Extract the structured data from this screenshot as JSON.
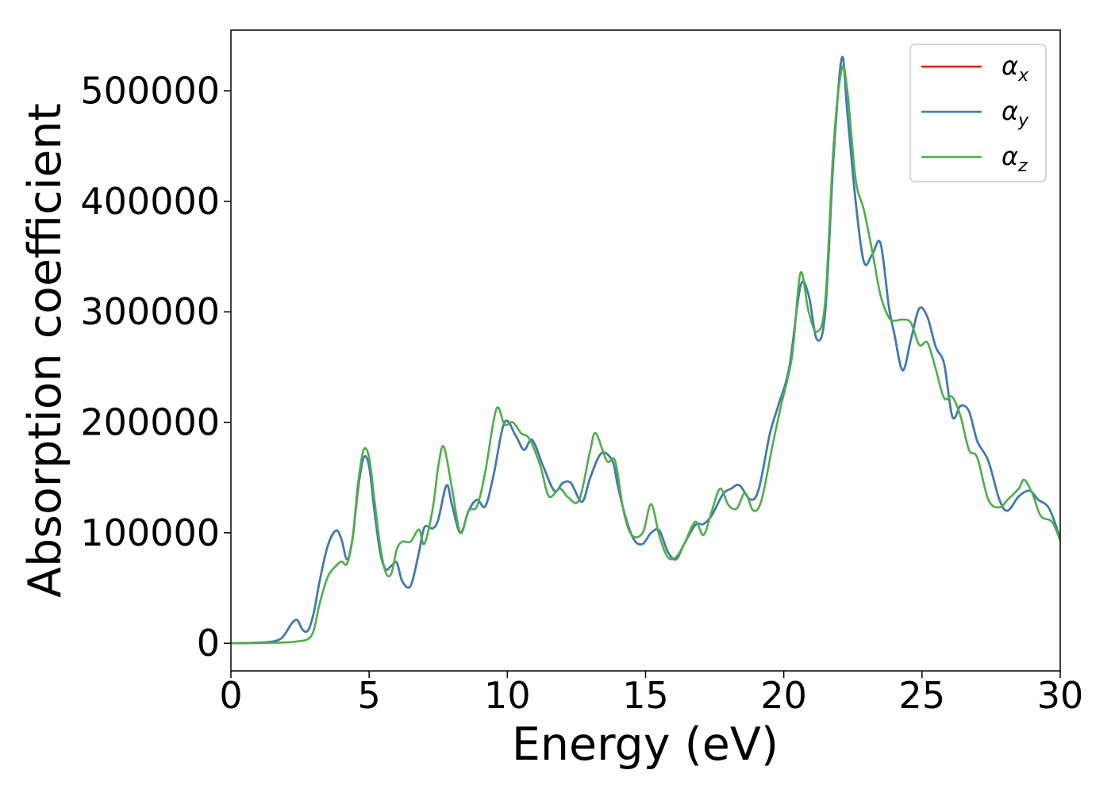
{
  "chart_data": {
    "type": "line",
    "title": "",
    "xlabel": "Energy (eV)",
    "ylabel": "Absorption coefficient",
    "xlim": [
      0,
      30
    ],
    "ylim": [
      -25000,
      555000
    ],
    "xticks": [
      0,
      5,
      10,
      15,
      20,
      25,
      30
    ],
    "xtick_labels": [
      "0",
      "5",
      "10",
      "15",
      "20",
      "25",
      "30"
    ],
    "yticks": [
      0,
      100000,
      200000,
      300000,
      400000,
      500000
    ],
    "ytick_labels": [
      "0",
      "100000",
      "200000",
      "300000",
      "400000",
      "500000"
    ],
    "grid": false,
    "legend_position": "top-right",
    "series": [
      {
        "name": "α",
        "subscript": "x",
        "color": "#e41a1c",
        "x": [
          0,
          1,
          1.5,
          1.8,
          2.0,
          2.2,
          2.4,
          2.6,
          2.8,
          3.0,
          3.2,
          3.5,
          3.8,
          4.0,
          4.2,
          4.4,
          4.6,
          4.8,
          5.0,
          5.2,
          5.4,
          5.6,
          5.8,
          6.0,
          6.2,
          6.5,
          6.8,
          7.0,
          7.3,
          7.5,
          7.8,
          8.0,
          8.3,
          8.6,
          8.9,
          9.2,
          9.5,
          9.9,
          10.3,
          10.6,
          10.9,
          11.3,
          11.7,
          12.0,
          12.3,
          12.7,
          13.0,
          13.4,
          13.8,
          14.0,
          14.3,
          14.6,
          14.9,
          15.2,
          15.5,
          15.8,
          16.1,
          16.4,
          16.8,
          17.1,
          17.4,
          17.8,
          18.1,
          18.4,
          18.8,
          19.1,
          19.5,
          19.8,
          20.2,
          20.6,
          20.9,
          21.2,
          21.5,
          21.8,
          22.1,
          22.3,
          22.6,
          22.9,
          23.2,
          23.5,
          23.8,
          24.0,
          24.3,
          24.6,
          24.9,
          25.2,
          25.5,
          25.8,
          26.1,
          26.4,
          26.7,
          27.0,
          27.4,
          27.8,
          28.1,
          28.5,
          28.9,
          29.2,
          29.6,
          30.0
        ],
        "values": [
          0,
          500,
          1500,
          4000,
          10000,
          18000,
          21000,
          12000,
          12000,
          28000,
          55000,
          88000,
          102000,
          94000,
          76000,
          95000,
          140000,
          168000,
          160000,
          118000,
          82000,
          67000,
          70000,
          73000,
          56000,
          52000,
          82000,
          105000,
          104000,
          112000,
          143000,
          125000,
          100000,
          120000,
          130000,
          124000,
          152000,
          200000,
          188000,
          175000,
          184000,
          160000,
          138000,
          145000,
          145000,
          128000,
          150000,
          172000,
          165000,
          142000,
          112000,
          93000,
          90000,
          100000,
          102000,
          83000,
          76000,
          90000,
          107000,
          108000,
          116000,
          135000,
          140000,
          143000,
          130000,
          140000,
          190000,
          215000,
          250000,
          323000,
          315000,
          275000,
          300000,
          440000,
          530000,
          480000,
          400000,
          345000,
          352000,
          362000,
          305000,
          280000,
          247000,
          275000,
          303000,
          295000,
          268000,
          253000,
          205000,
          215000,
          210000,
          183000,
          165000,
          130000,
          120000,
          133000,
          138000,
          130000,
          122000,
          95000
        ]
      },
      {
        "name": "α",
        "subscript": "y",
        "color": "#377eb8",
        "x": [
          0,
          1,
          1.5,
          1.8,
          2.0,
          2.2,
          2.4,
          2.6,
          2.8,
          3.0,
          3.2,
          3.5,
          3.8,
          4.0,
          4.2,
          4.4,
          4.6,
          4.8,
          5.0,
          5.2,
          5.4,
          5.6,
          5.8,
          6.0,
          6.2,
          6.5,
          6.8,
          7.0,
          7.3,
          7.5,
          7.8,
          8.0,
          8.3,
          8.6,
          8.9,
          9.2,
          9.5,
          9.9,
          10.3,
          10.6,
          10.9,
          11.3,
          11.7,
          12.0,
          12.3,
          12.7,
          13.0,
          13.4,
          13.8,
          14.0,
          14.3,
          14.6,
          14.9,
          15.2,
          15.5,
          15.8,
          16.1,
          16.4,
          16.8,
          17.1,
          17.4,
          17.8,
          18.1,
          18.4,
          18.8,
          19.1,
          19.5,
          19.8,
          20.2,
          20.6,
          20.9,
          21.2,
          21.5,
          21.8,
          22.1,
          22.3,
          22.6,
          22.9,
          23.2,
          23.5,
          23.8,
          24.0,
          24.3,
          24.6,
          24.9,
          25.2,
          25.5,
          25.8,
          26.1,
          26.4,
          26.7,
          27.0,
          27.4,
          27.8,
          28.1,
          28.5,
          28.9,
          29.2,
          29.6,
          30.0
        ],
        "values": [
          0,
          500,
          1500,
          4000,
          10000,
          18000,
          21000,
          12000,
          12000,
          28000,
          55000,
          88000,
          102000,
          94000,
          76000,
          95000,
          140000,
          168000,
          160000,
          118000,
          82000,
          67000,
          70000,
          73000,
          56000,
          52000,
          82000,
          105000,
          104000,
          112000,
          143000,
          125000,
          100000,
          120000,
          130000,
          124000,
          152000,
          200000,
          188000,
          175000,
          184000,
          160000,
          138000,
          145000,
          145000,
          128000,
          150000,
          172000,
          165000,
          142000,
          112000,
          93000,
          90000,
          100000,
          102000,
          83000,
          76000,
          90000,
          107000,
          108000,
          116000,
          135000,
          140000,
          143000,
          130000,
          140000,
          190000,
          215000,
          250000,
          323000,
          315000,
          275000,
          300000,
          440000,
          530000,
          480000,
          400000,
          345000,
          352000,
          362000,
          305000,
          280000,
          247000,
          275000,
          303000,
          295000,
          268000,
          253000,
          205000,
          215000,
          210000,
          183000,
          165000,
          130000,
          120000,
          133000,
          138000,
          130000,
          122000,
          95000
        ]
      },
      {
        "name": "α",
        "subscript": "z",
        "color": "#4daf4a",
        "x": [
          0,
          1,
          2,
          2.5,
          2.8,
          3.0,
          3.2,
          3.5,
          3.8,
          4.0,
          4.2,
          4.4,
          4.6,
          4.8,
          5.0,
          5.2,
          5.4,
          5.6,
          5.8,
          6.0,
          6.2,
          6.5,
          6.8,
          7.0,
          7.3,
          7.5,
          7.7,
          8.0,
          8.3,
          8.6,
          8.9,
          9.2,
          9.6,
          9.9,
          10.2,
          10.5,
          10.8,
          11.2,
          11.5,
          11.9,
          12.2,
          12.6,
          13.0,
          13.2,
          13.6,
          13.9,
          14.2,
          14.5,
          14.9,
          15.2,
          15.5,
          15.8,
          16.1,
          16.4,
          16.8,
          17.1,
          17.4,
          17.7,
          18.0,
          18.3,
          18.6,
          18.9,
          19.2,
          19.6,
          19.9,
          20.3,
          20.6,
          20.9,
          21.2,
          21.5,
          21.8,
          22.1,
          22.3,
          22.6,
          22.9,
          23.2,
          23.5,
          23.8,
          24.0,
          24.3,
          24.6,
          24.9,
          25.2,
          25.5,
          25.8,
          26.1,
          26.4,
          26.7,
          27.0,
          27.4,
          27.8,
          28.1,
          28.5,
          28.7,
          29.0,
          29.3,
          29.7,
          30.0
        ],
        "values": [
          0,
          200,
          800,
          2000,
          4000,
          12000,
          35000,
          60000,
          70000,
          74000,
          72000,
          95000,
          145000,
          175000,
          168000,
          128000,
          88000,
          64000,
          63000,
          85000,
          92000,
          92000,
          103000,
          90000,
          122000,
          160000,
          178000,
          140000,
          100000,
          120000,
          124000,
          155000,
          212000,
          198000,
          200000,
          190000,
          185000,
          160000,
          133000,
          140000,
          132000,
          130000,
          175000,
          190000,
          165000,
          165000,
          120000,
          98000,
          100000,
          126000,
          97000,
          78000,
          78000,
          90000,
          110000,
          98000,
          120000,
          140000,
          125000,
          122000,
          136000,
          120000,
          130000,
          180000,
          215000,
          260000,
          335000,
          300000,
          282000,
          310000,
          450000,
          520000,
          500000,
          420000,
          392000,
          355000,
          315000,
          295000,
          292000,
          293000,
          290000,
          270000,
          272000,
          248000,
          222000,
          223000,
          205000,
          175000,
          168000,
          130000,
          123000,
          130000,
          140000,
          148000,
          135000,
          115000,
          110000,
          93000
        ]
      }
    ]
  }
}
